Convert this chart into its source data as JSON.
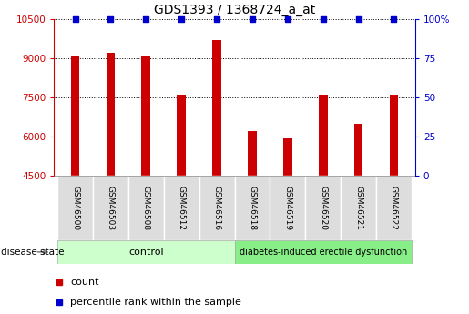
{
  "title": "GDS1393 / 1368724_a_at",
  "samples": [
    "GSM46500",
    "GSM46503",
    "GSM46508",
    "GSM46512",
    "GSM46516",
    "GSM46518",
    "GSM46519",
    "GSM46520",
    "GSM46521",
    "GSM46522"
  ],
  "counts": [
    9100,
    9200,
    9050,
    7600,
    9700,
    6200,
    5950,
    7600,
    6500,
    7600
  ],
  "percentile_ranks": [
    100,
    100,
    100,
    100,
    100,
    100,
    100,
    100,
    100,
    100
  ],
  "bar_color": "#cc0000",
  "percentile_color": "#0000cc",
  "ylim_left": [
    4500,
    10500
  ],
  "ylim_right": [
    0,
    100
  ],
  "yticks_left": [
    4500,
    6000,
    7500,
    9000,
    10500
  ],
  "yticks_right": [
    0,
    25,
    50,
    75,
    100
  ],
  "control_samples": 5,
  "control_label": "control",
  "disease_label": "diabetes-induced erectile dysfunction",
  "disease_state_label": "disease state",
  "control_bg": "#ccffcc",
  "disease_bg": "#88ee88",
  "sample_bg": "#dddddd",
  "legend_count_label": "count",
  "legend_percentile_label": "percentile rank within the sample",
  "title_fontsize": 10,
  "tick_label_fontsize": 7.5,
  "bar_width": 0.25
}
